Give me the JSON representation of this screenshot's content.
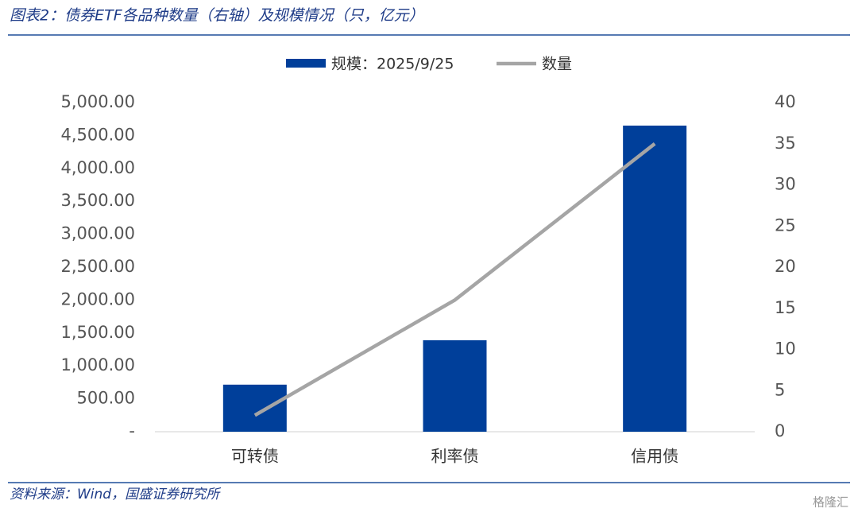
{
  "chart_data": {
    "type": "bar-line",
    "title": "图表2：债券ETF各品种数量（右轴）及规模情况（只，亿元）",
    "source": "资料来源：Wind，国盛证券研究所",
    "watermark": "格隆汇",
    "categories": [
      "可转债",
      "利率债",
      "信用债"
    ],
    "series": [
      {
        "name": "规模：2025/9/25",
        "color": "#003f9a",
        "kind": "bar",
        "values": [
          715,
          1390,
          4650
        ]
      },
      {
        "name": "数量",
        "color": "#a5a5a5",
        "kind": "line",
        "axis": "y2",
        "values": [
          2,
          16,
          35
        ]
      }
    ],
    "ylim": [
      0,
      5000
    ],
    "yticks": [
      {
        "value": 0,
        "label": "-"
      },
      {
        "value": 500,
        "label": "500.00"
      },
      {
        "value": 1000,
        "label": "1,000.00"
      },
      {
        "value": 1500,
        "label": "1,500.00"
      },
      {
        "value": 2000,
        "label": "2,000.00"
      },
      {
        "value": 2500,
        "label": "2,500.00"
      },
      {
        "value": 3000,
        "label": "3,000.00"
      },
      {
        "value": 3500,
        "label": "3,500.00"
      },
      {
        "value": 4000,
        "label": "4,000.00"
      },
      {
        "value": 4500,
        "label": "4,500.00"
      },
      {
        "value": 5000,
        "label": "5,000.00"
      }
    ],
    "y2lim": [
      0,
      40
    ],
    "y2ticks": [
      0,
      5,
      10,
      15,
      20,
      25,
      30,
      35,
      40
    ],
    "grid": false,
    "legend": "top"
  }
}
